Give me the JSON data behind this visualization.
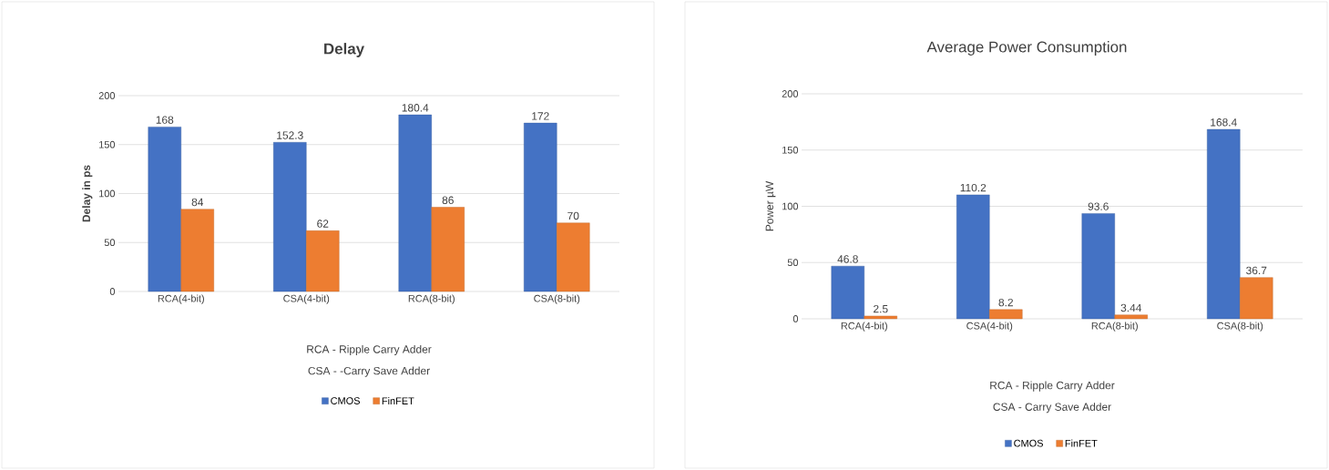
{
  "chart_data": [
    {
      "type": "bar",
      "title": "Delay",
      "ylabel": "Delay in ps",
      "categories": [
        "RCA(4-bit)",
        "CSA(4-bit)",
        "RCA(8-bit)",
        "CSA(8-bit)"
      ],
      "series": [
        {
          "name": "CMOS",
          "color": "#4472c4",
          "values": [
            168,
            152.3,
            180.4,
            172
          ]
        },
        {
          "name": "FinFET",
          "color": "#ed7d31",
          "values": [
            84,
            62,
            86,
            70
          ]
        }
      ],
      "ylim": [
        0,
        200
      ],
      "yticks": [
        0,
        50,
        100,
        150,
        200
      ],
      "grid": "y",
      "legend": "bottom",
      "data_labels": true,
      "annotations": [
        "RCA - Ripple Carry Adder",
        "CSA - -Carry Save Adder"
      ]
    },
    {
      "type": "bar",
      "title": "Average Power Consumption",
      "ylabel": "Power µW",
      "categories": [
        "RCA(4-bit)",
        "CSA(4-bit)",
        "RCA(8-bit)",
        "CSA(8-bit)"
      ],
      "series": [
        {
          "name": "CMOS",
          "color": "#4472c4",
          "values": [
            46.8,
            110.2,
            93.6,
            168.4
          ]
        },
        {
          "name": "FinFET",
          "color": "#ed7d31",
          "values": [
            2.5,
            8.2,
            3.44,
            36.7
          ]
        }
      ],
      "ylim": [
        0,
        200
      ],
      "yticks": [
        0,
        50,
        100,
        150,
        200
      ],
      "grid": "y",
      "legend": "bottom",
      "data_labels": true,
      "annotations": [
        "RCA - Ripple Carry Adder",
        "CSA - Carry Save Adder"
      ]
    }
  ]
}
